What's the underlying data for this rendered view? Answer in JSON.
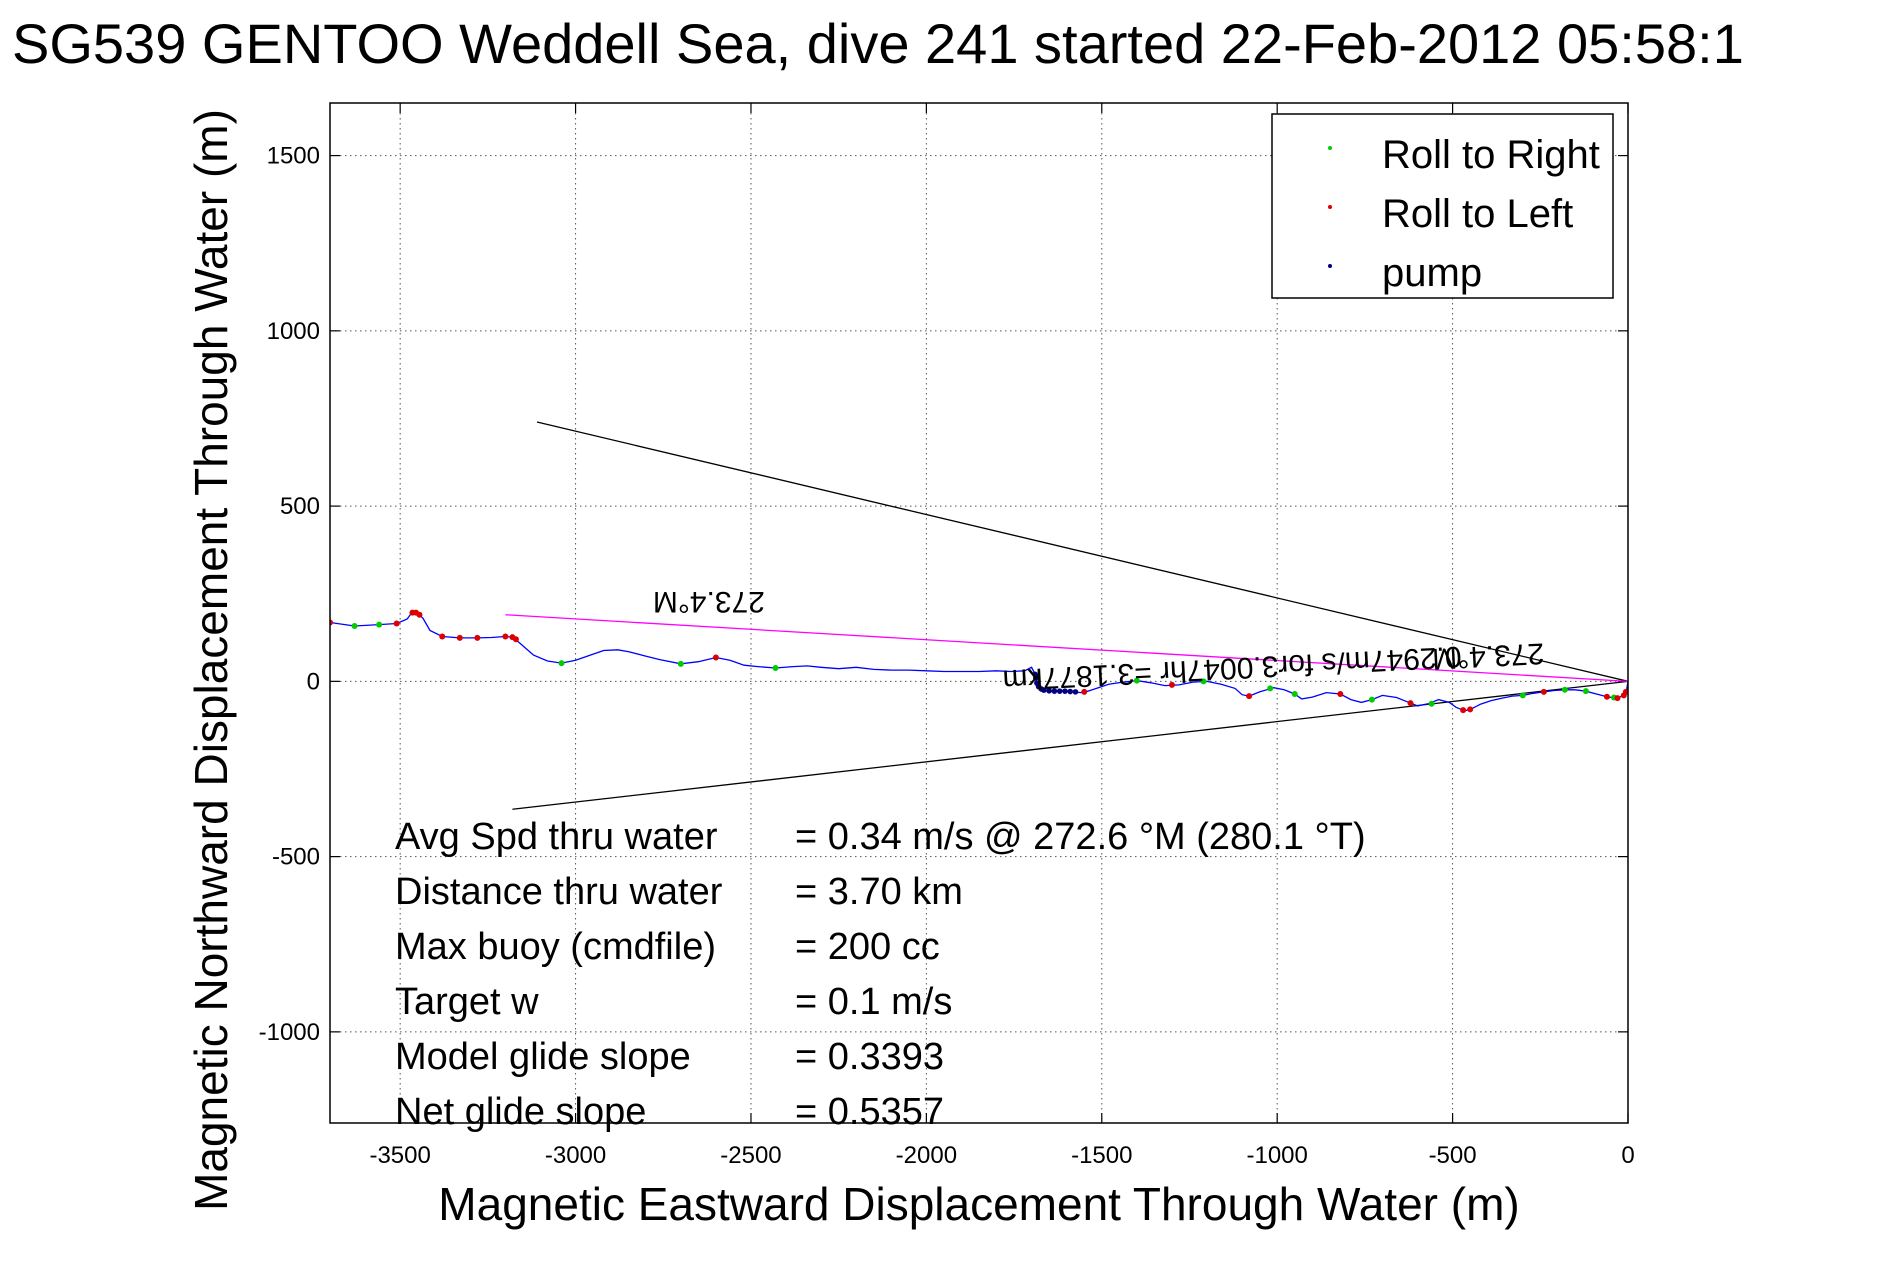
{
  "chart_data": {
    "type": "line",
    "title": "SG539 GENTOO Weddell Sea, dive 241 started 22-Feb-2012 05:58:1",
    "xlabel": "Magnetic Eastward Displacement Through Water (m)",
    "ylabel": "Magnetic Northward Displacement Through Water (m)",
    "xlim": [
      -3700,
      0
    ],
    "ylim": [
      -1260,
      1650
    ],
    "xticks": [
      -3500,
      -3000,
      -2500,
      -2000,
      -1500,
      -1000,
      -500,
      0
    ],
    "yticks": [
      1500,
      1000,
      500,
      0,
      -500,
      -1000
    ],
    "grid": true,
    "legend_position": "top-right",
    "legend": [
      "Roll to Right",
      "Roll to Left",
      "pump"
    ],
    "colors": {
      "track": "#0000ff",
      "roll_right": "#00cc00",
      "roll_left": "#dd0000",
      "pump": "#000080",
      "heading_line": "#ff00ff",
      "cone": "#000000",
      "grid": "#555555"
    },
    "track": [
      [
        -3700,
        168
      ],
      [
        -3630,
        158
      ],
      [
        -3560,
        162
      ],
      [
        -3510,
        165
      ],
      [
        -3480,
        178
      ],
      [
        -3470,
        192
      ],
      [
        -3455,
        198
      ],
      [
        -3435,
        180
      ],
      [
        -3415,
        145
      ],
      [
        -3380,
        128
      ],
      [
        -3330,
        124
      ],
      [
        -3280,
        124
      ],
      [
        -3240,
        125
      ],
      [
        -3200,
        128
      ],
      [
        -3180,
        126
      ],
      [
        -3160,
        110
      ],
      [
        -3120,
        75
      ],
      [
        -3080,
        58
      ],
      [
        -3040,
        52
      ],
      [
        -3000,
        60
      ],
      [
        -2960,
        74
      ],
      [
        -2920,
        88
      ],
      [
        -2880,
        90
      ],
      [
        -2850,
        85
      ],
      [
        -2800,
        72
      ],
      [
        -2760,
        62
      ],
      [
        -2700,
        50
      ],
      [
        -2650,
        56
      ],
      [
        -2600,
        68
      ],
      [
        -2560,
        60
      ],
      [
        -2520,
        46
      ],
      [
        -2480,
        42
      ],
      [
        -2430,
        38
      ],
      [
        -2380,
        42
      ],
      [
        -2340,
        44
      ],
      [
        -2300,
        40
      ],
      [
        -2250,
        36
      ],
      [
        -2200,
        40
      ],
      [
        -2150,
        34
      ],
      [
        -2100,
        32
      ],
      [
        -2050,
        32
      ],
      [
        -2000,
        30
      ],
      [
        -1950,
        28
      ],
      [
        -1900,
        28
      ],
      [
        -1850,
        28
      ],
      [
        -1800,
        30
      ],
      [
        -1760,
        28
      ],
      [
        -1720,
        30
      ],
      [
        -1700,
        40
      ],
      [
        -1690,
        20
      ],
      [
        -1685,
        -10
      ],
      [
        -1675,
        -22
      ],
      [
        -1660,
        -26
      ],
      [
        -1640,
        -28
      ],
      [
        -1610,
        -28
      ],
      [
        -1580,
        -30
      ],
      [
        -1560,
        -32
      ],
      [
        -1540,
        -28
      ],
      [
        -1510,
        -18
      ],
      [
        -1480,
        -8
      ],
      [
        -1440,
        -2
      ],
      [
        -1400,
        2
      ],
      [
        -1360,
        -4
      ],
      [
        -1320,
        -12
      ],
      [
        -1280,
        -10
      ],
      [
        -1240,
        -2
      ],
      [
        -1200,
        0
      ],
      [
        -1160,
        -8
      ],
      [
        -1120,
        -20
      ],
      [
        -1100,
        -38
      ],
      [
        -1080,
        -42
      ],
      [
        -1050,
        -30
      ],
      [
        -1010,
        -18
      ],
      [
        -980,
        -24
      ],
      [
        -950,
        -36
      ],
      [
        -930,
        -50
      ],
      [
        -900,
        -45
      ],
      [
        -860,
        -32
      ],
      [
        -820,
        -36
      ],
      [
        -790,
        -52
      ],
      [
        -760,
        -60
      ],
      [
        -730,
        -52
      ],
      [
        -700,
        -40
      ],
      [
        -660,
        -46
      ],
      [
        -630,
        -58
      ],
      [
        -600,
        -70
      ],
      [
        -570,
        -64
      ],
      [
        -540,
        -52
      ],
      [
        -510,
        -60
      ],
      [
        -490,
        -74
      ],
      [
        -465,
        -84
      ],
      [
        -445,
        -78
      ],
      [
        -420,
        -65
      ],
      [
        -390,
        -55
      ],
      [
        -360,
        -48
      ],
      [
        -330,
        -42
      ],
      [
        -300,
        -40
      ],
      [
        -270,
        -34
      ],
      [
        -240,
        -30
      ],
      [
        -210,
        -26
      ],
      [
        -180,
        -24
      ],
      [
        -150,
        -24
      ],
      [
        -120,
        -28
      ],
      [
        -90,
        -36
      ],
      [
        -60,
        -44
      ],
      [
        -35,
        -48
      ],
      [
        -15,
        -42
      ],
      [
        -4,
        -24
      ],
      [
        0,
        0
      ]
    ],
    "roll_right_points": [
      [
        -3630,
        158
      ],
      [
        -3560,
        162
      ],
      [
        -3040,
        52
      ],
      [
        -2700,
        50
      ],
      [
        -2430,
        38
      ],
      [
        -1400,
        2
      ],
      [
        -1210,
        0
      ],
      [
        -1020,
        -20
      ],
      [
        -950,
        -36
      ],
      [
        -730,
        -52
      ],
      [
        -560,
        -64
      ],
      [
        -300,
        -40
      ],
      [
        -180,
        -24
      ],
      [
        -120,
        -28
      ],
      [
        -40,
        -46
      ]
    ],
    "roll_left_points": [
      [
        -3700,
        168
      ],
      [
        -3510,
        165
      ],
      [
        -3465,
        196
      ],
      [
        -3455,
        196
      ],
      [
        -3445,
        190
      ],
      [
        -3380,
        128
      ],
      [
        -3330,
        124
      ],
      [
        -3280,
        124
      ],
      [
        -3200,
        128
      ],
      [
        -3180,
        126
      ],
      [
        -3170,
        120
      ],
      [
        -2600,
        68
      ],
      [
        -1550,
        -30
      ],
      [
        -1300,
        -10
      ],
      [
        -1080,
        -42
      ],
      [
        -820,
        -36
      ],
      [
        -620,
        -62
      ],
      [
        -470,
        -82
      ],
      [
        -450,
        -80
      ],
      [
        -240,
        -30
      ],
      [
        -60,
        -44
      ],
      [
        -30,
        -48
      ],
      [
        -12,
        -40
      ],
      [
        -6,
        -30
      ]
    ],
    "pump_points": [
      [
        -1690,
        20
      ],
      [
        -1688,
        10
      ],
      [
        -1685,
        -5
      ],
      [
        -1680,
        -15
      ],
      [
        -1672,
        -22
      ],
      [
        -1665,
        -25
      ],
      [
        -1650,
        -27
      ],
      [
        -1635,
        -28
      ],
      [
        -1620,
        -28
      ],
      [
        -1605,
        -28
      ],
      [
        -1590,
        -29
      ],
      [
        -1575,
        -30
      ]
    ],
    "heading_line": {
      "from": [
        -3200,
        190
      ],
      "to": [
        0,
        0
      ]
    },
    "cone_lines": [
      {
        "from": [
          -3110,
          740
        ],
        "to": [
          0,
          0
        ]
      },
      {
        "from": [
          -3180,
          -365
        ],
        "to": [
          0,
          0
        ]
      }
    ],
    "annotations": [
      {
        "text": "273.4°M",
        "x": -2620,
        "y": 255,
        "rotation": 180,
        "size": 30
      },
      {
        "text": "273.4°M",
        "x": -400,
        "y": 100,
        "rotation": 177,
        "size": 30
      },
      {
        "text": "0.2947m/s for3.0047hr =3.1877km",
        "x": -1130,
        "y": 65,
        "rotation": 177,
        "size": 30
      }
    ],
    "stats": [
      {
        "label": "Avg Spd thru water",
        "value": "=  0.34 m/s @ 272.6 °M (280.1 °T)"
      },
      {
        "label": "Distance thru water",
        "value": "=  3.70 km"
      },
      {
        "label": "Max buoy (cmdfile)",
        "value": "= 200 cc"
      },
      {
        "label": "Target w",
        "value": "= 0.1 m/s"
      },
      {
        "label": "Model glide slope",
        "value": "= 0.3393"
      },
      {
        "label": "Net glide slope",
        "value": "= 0.5357"
      }
    ]
  }
}
